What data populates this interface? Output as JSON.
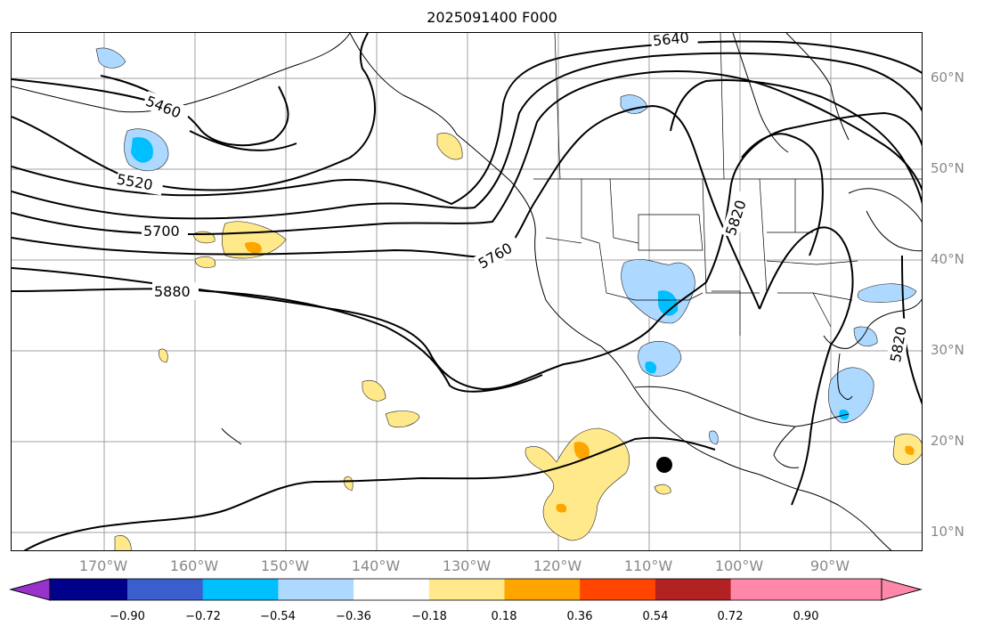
{
  "title": "2025091400 F000",
  "lat_labels": [
    "60°N",
    "50°N",
    "40°N",
    "30°N",
    "20°N",
    "10°N"
  ],
  "lon_labels": [
    "170°W",
    "160°W",
    "150°W",
    "140°W",
    "130°W",
    "120°W",
    "110°W",
    "100°W",
    "90°W"
  ],
  "contour_labels": [
    "5460",
    "5520",
    "5640",
    "5700",
    "5760",
    "5820",
    "5880",
    "5820"
  ],
  "colorbar": {
    "ticks": [
      "−0.90",
      "−0.72",
      "−0.54",
      "−0.36",
      "−0.18",
      "0.18",
      "0.36",
      "0.54",
      "0.72",
      "0.90"
    ],
    "colors": [
      "#9932cc",
      "#00008b",
      "#3a5fcd",
      "#00bfff",
      "#add8ff",
      "#ffffff",
      "#ffe98a",
      "#ffa500",
      "#ff4500",
      "#b22222",
      "#ff88aa"
    ]
  },
  "marker": "storm-center"
}
